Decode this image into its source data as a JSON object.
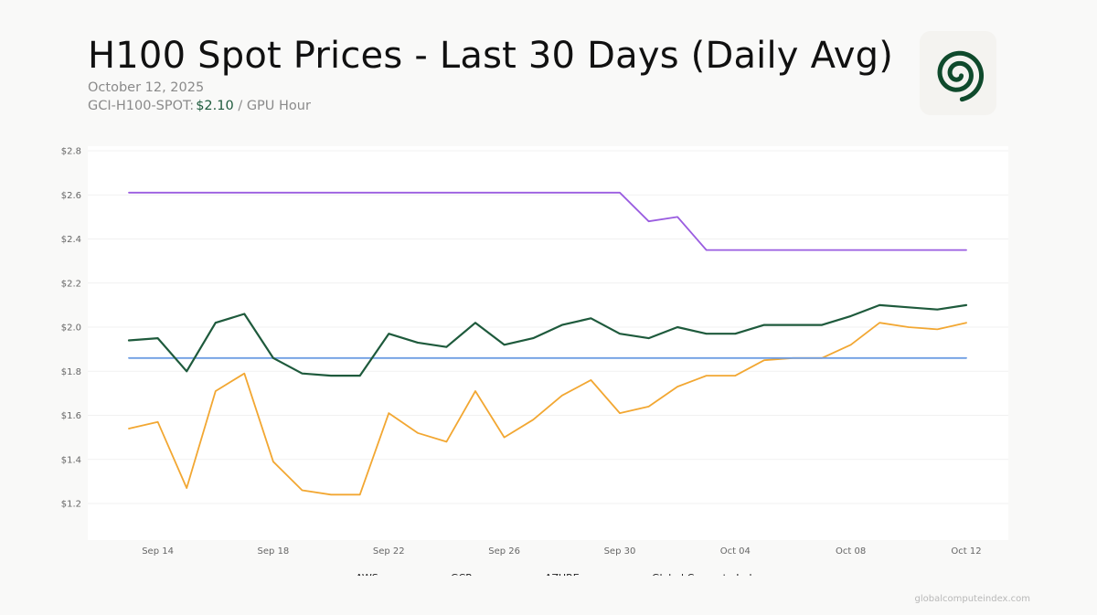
{
  "header": {
    "title": "H100 Spot Prices - Last 30 Days (Daily Avg)",
    "date": "October 12, 2025",
    "index_label": "GCI-H100-SPOT:",
    "index_price": "$2.10",
    "index_unit": "/ GPU Hour"
  },
  "logo": {
    "icon": "spiral-icon",
    "color": "#0f4a2c"
  },
  "footer": {
    "site": "globalcomputeindex.com"
  },
  "chart_data": {
    "type": "line",
    "title": "H100 Spot Prices - Last 30 Days (Daily Avg)",
    "xlabel": "",
    "ylabel": "",
    "ylim": [
      1.03,
      2.8
    ],
    "yticks": [
      1.2,
      1.4,
      1.6,
      1.8,
      2.0,
      2.2,
      2.4,
      2.6,
      2.8
    ],
    "ytick_labels": [
      "$1.2",
      "$1.4",
      "$1.6",
      "$1.8",
      "$2.0",
      "$2.2",
      "$2.4",
      "$2.6",
      "$2.8"
    ],
    "x": [
      "Sep 13",
      "Sep 14",
      "Sep 15",
      "Sep 16",
      "Sep 17",
      "Sep 18",
      "Sep 19",
      "Sep 20",
      "Sep 21",
      "Sep 22",
      "Sep 23",
      "Sep 24",
      "Sep 25",
      "Sep 26",
      "Sep 27",
      "Sep 28",
      "Sep 29",
      "Sep 30",
      "Oct 01",
      "Oct 02",
      "Oct 03",
      "Oct 04",
      "Oct 05",
      "Oct 06",
      "Oct 07",
      "Oct 08",
      "Oct 09",
      "Oct 10",
      "Oct 11",
      "Oct 12"
    ],
    "xtick_labels": [
      {
        "label": "Sep 14",
        "index": 1
      },
      {
        "label": "Sep 18",
        "index": 5
      },
      {
        "label": "Sep 22",
        "index": 9
      },
      {
        "label": "Sep 26",
        "index": 13
      },
      {
        "label": "Sep 30",
        "index": 17
      },
      {
        "label": "Oct 04",
        "index": 21
      },
      {
        "label": "Oct 08",
        "index": 25
      },
      {
        "label": "Oct 12",
        "index": 29
      }
    ],
    "grid": true,
    "legend_position": "bottom",
    "series": [
      {
        "name": "AWS",
        "color": "#f2a732",
        "values": [
          1.54,
          1.57,
          1.27,
          1.71,
          1.79,
          1.39,
          1.26,
          1.24,
          1.24,
          1.61,
          1.52,
          1.48,
          1.71,
          1.5,
          1.58,
          1.69,
          1.76,
          1.61,
          1.64,
          1.73,
          1.78,
          1.78,
          1.85,
          1.86,
          1.86,
          1.92,
          2.02,
          2.0,
          1.99,
          2.02
        ]
      },
      {
        "name": "GCP",
        "color": "#6f9ee3",
        "values": [
          1.86,
          1.86,
          1.86,
          1.86,
          1.86,
          1.86,
          1.86,
          1.86,
          1.86,
          1.86,
          1.86,
          1.86,
          1.86,
          1.86,
          1.86,
          1.86,
          1.86,
          1.86,
          1.86,
          1.86,
          1.86,
          1.86,
          1.86,
          1.86,
          1.86,
          1.86,
          1.86,
          1.86,
          1.86,
          1.86
        ]
      },
      {
        "name": "AZURE",
        "color": "#9a5de0",
        "values": [
          2.61,
          2.61,
          2.61,
          2.61,
          2.61,
          2.61,
          2.61,
          2.61,
          2.61,
          2.61,
          2.61,
          2.61,
          2.61,
          2.61,
          2.61,
          2.61,
          2.61,
          2.61,
          2.48,
          2.5,
          2.35,
          2.35,
          2.35,
          2.35,
          2.35,
          2.35,
          2.35,
          2.35,
          2.35,
          2.35
        ]
      },
      {
        "name": "Global Compute Index",
        "color": "#1e5a3c",
        "values": [
          1.94,
          1.95,
          1.8,
          2.02,
          2.06,
          1.86,
          1.79,
          1.78,
          1.78,
          1.97,
          1.93,
          1.91,
          2.02,
          1.92,
          1.95,
          2.01,
          2.04,
          1.97,
          1.95,
          2.0,
          1.97,
          1.97,
          2.01,
          2.01,
          2.01,
          2.05,
          2.1,
          2.09,
          2.08,
          2.1
        ]
      }
    ]
  }
}
